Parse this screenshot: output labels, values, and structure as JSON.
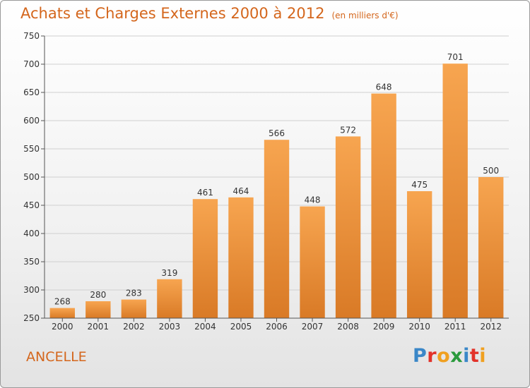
{
  "header": {
    "title": "Achats et Charges Externes 2000 à 2012",
    "unit": "(en milliers d'€)"
  },
  "footer": {
    "city": "ANCELLE",
    "logo": "Proxiti",
    "logo_letters": [
      "P",
      "r",
      "o",
      "x",
      "i",
      "t",
      "i"
    ]
  },
  "colors": {
    "accent": "#d4661c",
    "bar_top": "#f7a550",
    "bar_bottom": "#d97a26"
  },
  "chart_data": {
    "type": "bar",
    "title": "Achats et Charges Externes 2000 à 2012",
    "subtitle": "(en milliers d'€)",
    "xlabel": "",
    "ylabel": "",
    "categories": [
      "2000",
      "2001",
      "2002",
      "2003",
      "2004",
      "2005",
      "2006",
      "2007",
      "2008",
      "2009",
      "2010",
      "2011",
      "2012"
    ],
    "values": [
      268,
      280,
      283,
      319,
      461,
      464,
      566,
      448,
      572,
      648,
      475,
      701,
      500
    ],
    "ylim": [
      250,
      750
    ],
    "yticks": [
      250,
      300,
      350,
      400,
      450,
      500,
      550,
      600,
      650,
      700,
      750
    ],
    "grid": true,
    "legend": "none"
  }
}
